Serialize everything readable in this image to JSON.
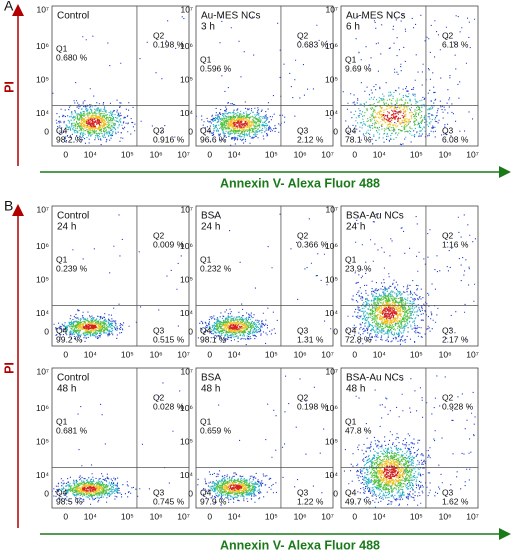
{
  "x_ticks": [
    "0",
    "10⁴",
    "10⁵",
    "10⁶",
    "10⁷"
  ],
  "y_ticks": [
    "10⁷",
    "10⁶",
    "10⁵",
    "10⁴",
    "0"
  ],
  "panels": [
    {
      "label": "A",
      "y_axis_label": "PI",
      "x_axis_label": "Annexin V- Alexa Fluor 488",
      "rows": [
        [
          {
            "title": [
              "Control"
            ],
            "quadrants": [
              {
                "name": "Q1",
                "value": "0.680 %"
              },
              {
                "name": "Q2",
                "value": "0.198 %"
              },
              {
                "name": "Q3",
                "value": "0.916 %"
              },
              {
                "name": "Q4",
                "value": "98.2 %"
              }
            ]
          },
          {
            "title": [
              "Au-MES NCs",
              "3 h"
            ],
            "quadrants": [
              {
                "name": "Q1",
                "value": "0.596 %"
              },
              {
                "name": "Q2",
                "value": "0.683 %"
              },
              {
                "name": "Q3",
                "value": "2.12 %"
              },
              {
                "name": "Q4",
                "value": "96.6 %"
              }
            ]
          },
          {
            "title": [
              "Au-MES NCs",
              "6 h"
            ],
            "quadrants": [
              {
                "name": "Q1",
                "value": "9.69 %"
              },
              {
                "name": "Q2",
                "value": "6.18 %"
              },
              {
                "name": "Q3",
                "value": "6.08 %"
              },
              {
                "name": "Q4",
                "value": "78.1 %"
              }
            ]
          }
        ]
      ]
    },
    {
      "label": "B",
      "y_axis_label": "PI",
      "x_axis_label": "Annexin V- Alexa Fluor 488",
      "rows": [
        [
          {
            "title": [
              "Control",
              "24 h"
            ],
            "quadrants": [
              {
                "name": "Q1",
                "value": "0.239 %"
              },
              {
                "name": "Q2",
                "value": "0.009 %"
              },
              {
                "name": "Q3",
                "value": "0.515 %"
              },
              {
                "name": "Q4",
                "value": "99.2 %"
              }
            ]
          },
          {
            "title": [
              "BSA",
              "24 h"
            ],
            "quadrants": [
              {
                "name": "Q1",
                "value": "0.232 %"
              },
              {
                "name": "Q2",
                "value": "0.366 %"
              },
              {
                "name": "Q3",
                "value": "1.31 %"
              },
              {
                "name": "Q4",
                "value": "98.1 %"
              }
            ]
          },
          {
            "title": [
              "BSA-Au NCs",
              "24 h"
            ],
            "quadrants": [
              {
                "name": "Q1",
                "value": "23.9 %"
              },
              {
                "name": "Q2",
                "value": "1.16 %"
              },
              {
                "name": "Q3",
                "value": "2.17 %"
              },
              {
                "name": "Q4",
                "value": "72.8 %"
              }
            ]
          }
        ],
        [
          {
            "title": [
              "Control",
              "48 h"
            ],
            "quadrants": [
              {
                "name": "Q1",
                "value": "0.681 %"
              },
              {
                "name": "Q2",
                "value": "0.028 %"
              },
              {
                "name": "Q3",
                "value": "0.745 %"
              },
              {
                "name": "Q4",
                "value": "98.5 %"
              }
            ]
          },
          {
            "title": [
              "BSA",
              "48 h"
            ],
            "quadrants": [
              {
                "name": "Q1",
                "value": "0.659 %"
              },
              {
                "name": "Q2",
                "value": "0.198 %"
              },
              {
                "name": "Q3",
                "value": "1.22 %"
              },
              {
                "name": "Q4",
                "value": "97.9 %"
              }
            ]
          },
          {
            "title": [
              "BSA-Au NCs",
              "48 h"
            ],
            "quadrants": [
              {
                "name": "Q1",
                "value": "47.8 %"
              },
              {
                "name": "Q2",
                "value": "0.928 %"
              },
              {
                "name": "Q3",
                "value": "1.62 %"
              },
              {
                "name": "Q4",
                "value": "49.7 %"
              }
            ]
          }
        ]
      ]
    }
  ]
}
